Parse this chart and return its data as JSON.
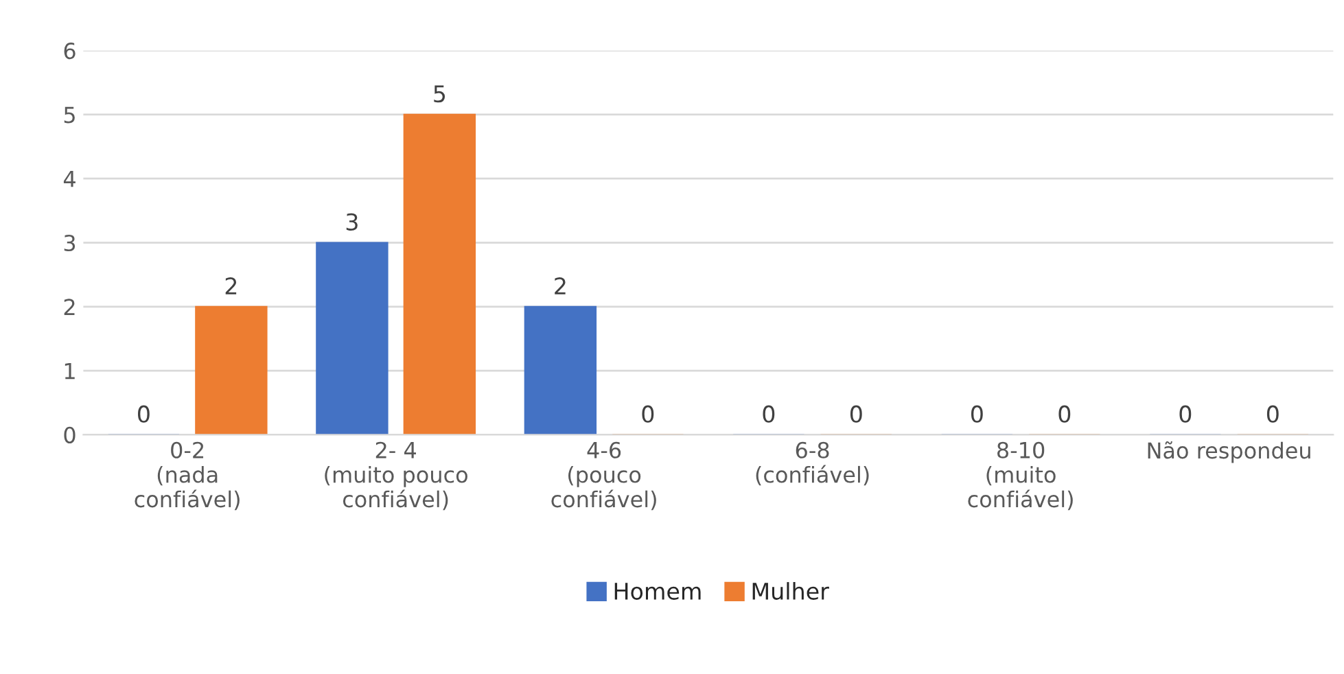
{
  "chart_data": {
    "type": "bar",
    "categories": [
      "0-2\n(nada\nconfiável)",
      "2- 4\n(muito pouco\nconfiável)",
      "4-6\n(pouco\nconfiável)",
      "6-8\n(confiável)",
      "8-10\n(muito\nconfiável)",
      "Não respondeu"
    ],
    "series": [
      {
        "name": "Homem",
        "color": "#4472c4",
        "values": [
          0,
          3,
          2,
          0,
          0,
          0
        ]
      },
      {
        "name": "Mulher",
        "color": "#ed7d31",
        "values": [
          2,
          5,
          0,
          0,
          0,
          0
        ]
      }
    ],
    "ylim": [
      0,
      6
    ],
    "yticks": [
      0,
      1,
      2,
      3,
      4,
      5,
      6
    ],
    "grid": "y",
    "legend": "bottom",
    "data_labels": true
  }
}
